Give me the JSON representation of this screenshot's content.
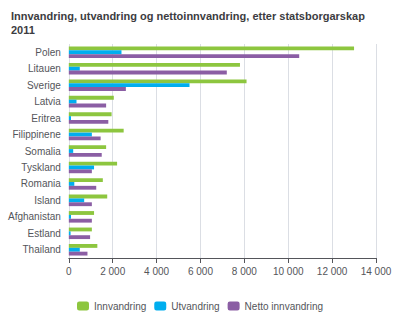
{
  "chart_data": {
    "type": "bar",
    "orientation": "horizontal",
    "title": "Innvandring, utvandring og nettoinnvandring, etter statsborgarskap\n2011",
    "categories": [
      "Polen",
      "Litauen",
      "Sverige",
      "Latvia",
      "Eritrea",
      "Filippinene",
      "Somalia",
      "Tyskland",
      "Romania",
      "Island",
      "Afghanistan",
      "Estland",
      "Thailand"
    ],
    "series": [
      {
        "name": "Innvandring",
        "color": "#8dc63f",
        "values": [
          13000,
          7800,
          8100,
          2050,
          1950,
          2500,
          1700,
          2200,
          1550,
          1750,
          1150,
          1050,
          1300
        ]
      },
      {
        "name": "Utvandring",
        "color": "#00aeef",
        "values": [
          2400,
          500,
          5500,
          350,
          100,
          1050,
          200,
          1150,
          250,
          700,
          100,
          80,
          500
        ]
      },
      {
        "name": "Netto innvandring",
        "color": "#8b5ea4",
        "values": [
          10500,
          7200,
          2600,
          1700,
          1800,
          1450,
          1500,
          1050,
          1250,
          1050,
          1050,
          970,
          850
        ]
      }
    ],
    "xlim": [
      0,
      14000
    ],
    "xticks": [
      0,
      {
        "value": 2000,
        "label": "2 000"
      },
      {
        "value": 4000,
        "label": "4 000"
      },
      {
        "value": 6000,
        "label": "6 000"
      },
      {
        "value": 8000,
        "label": "8 000"
      },
      {
        "value": 10000,
        "label": "10 000"
      },
      {
        "value": 12000,
        "label": "12 000"
      },
      {
        "value": 14000,
        "label": "14 000"
      }
    ],
    "grid": true,
    "legend": "bottom"
  }
}
